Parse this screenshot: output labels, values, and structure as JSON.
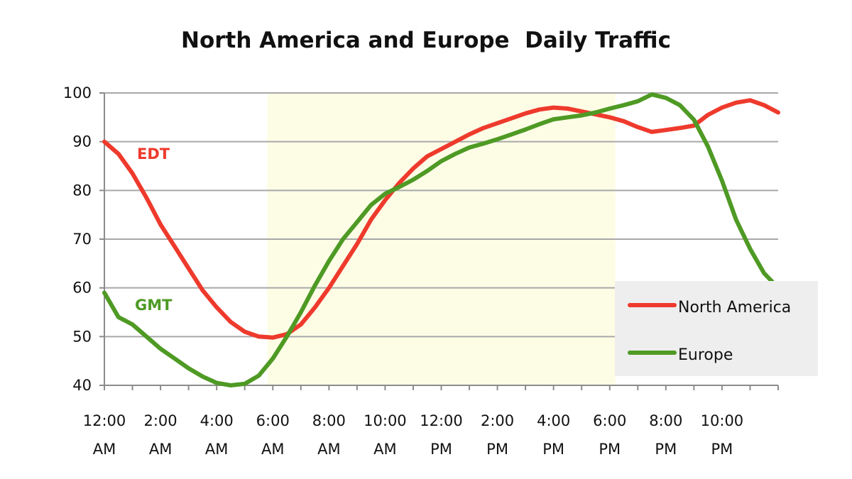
{
  "chart_data": {
    "type": "line",
    "title": "North America and Europe  Daily Traffic",
    "xlabel": "",
    "ylabel": "",
    "ylim": [
      40,
      100
    ],
    "yticks": [
      40,
      50,
      60,
      70,
      80,
      90,
      100
    ],
    "xlim": [
      0,
      24
    ],
    "xtick_positions": [
      0,
      2,
      4,
      6,
      8,
      10,
      12,
      14,
      16,
      18,
      20,
      22
    ],
    "xtick_labels": [
      [
        "12:00",
        "AM"
      ],
      [
        "2:00",
        "AM"
      ],
      [
        "4:00",
        "AM"
      ],
      [
        "6:00",
        "AM"
      ],
      [
        "8:00",
        "AM"
      ],
      [
        "10:00",
        "AM"
      ],
      [
        "12:00",
        "PM"
      ],
      [
        "2:00",
        "PM"
      ],
      [
        "4:00",
        "PM"
      ],
      [
        "6:00",
        "PM"
      ],
      [
        "8:00",
        "PM"
      ],
      [
        "10:00",
        "PM"
      ]
    ],
    "grid": true,
    "shaded_region": {
      "x_start": 5.8,
      "x_end": 18.2,
      "color": "#fdfde6"
    },
    "legend_position": "bottom-right",
    "series": [
      {
        "name": "North America",
        "color": "#ee3a2c",
        "label": "EDT",
        "x": [
          0,
          0.5,
          1,
          1.5,
          2,
          2.5,
          3,
          3.5,
          4,
          4.5,
          5,
          5.5,
          6,
          6.5,
          7,
          7.5,
          8,
          8.5,
          9,
          9.5,
          10,
          10.5,
          11,
          11.5,
          12,
          12.5,
          13,
          13.5,
          14,
          14.5,
          15,
          15.5,
          16,
          16.5,
          17,
          17.5,
          18,
          18.5,
          19,
          19.5,
          20,
          20.5,
          21,
          21.5,
          22,
          22.5,
          23,
          23.5,
          24
        ],
        "y": [
          90,
          87.5,
          83.5,
          78.5,
          73,
          68.5,
          64,
          59.5,
          56,
          53,
          51,
          50,
          49.8,
          50.5,
          52.5,
          56,
          60,
          64.5,
          69,
          74,
          78,
          81.5,
          84.5,
          87,
          88.5,
          90,
          91.5,
          92.8,
          93.8,
          94.8,
          95.8,
          96.6,
          97,
          96.8,
          96.2,
          95.6,
          95,
          94.2,
          93,
          92,
          92.4,
          92.8,
          93.3,
          95.5,
          97,
          98,
          98.5,
          97.5,
          96
        ]
      },
      {
        "name": "Europe",
        "color": "#4e9a24",
        "label": "GMT",
        "x": [
          0,
          0.5,
          1,
          1.5,
          2,
          2.5,
          3,
          3.5,
          4,
          4.5,
          5,
          5.5,
          6,
          6.5,
          7,
          7.5,
          8,
          8.5,
          9,
          9.5,
          10,
          10.5,
          11,
          11.5,
          12,
          12.5,
          13,
          13.5,
          14,
          14.5,
          15,
          15.5,
          16,
          16.5,
          17,
          17.5,
          18,
          18.5,
          19,
          19.5,
          20,
          20.5,
          21,
          21.5,
          22,
          22.5,
          23,
          23.5,
          24
        ],
        "y": [
          59,
          54,
          52.5,
          50,
          47.5,
          45.5,
          43.5,
          41.8,
          40.5,
          40,
          40.3,
          42,
          45.5,
          50,
          55,
          60.5,
          65.5,
          70,
          73.5,
          77,
          79.3,
          80.7,
          82.2,
          84,
          86,
          87.5,
          88.8,
          89.6,
          90.5,
          91.5,
          92.5,
          93.6,
          94.6,
          95,
          95.4,
          96,
          96.8,
          97.5,
          98.3,
          99.7,
          99,
          97.5,
          94.5,
          89,
          82,
          74,
          68,
          63,
          60
        ]
      }
    ]
  }
}
